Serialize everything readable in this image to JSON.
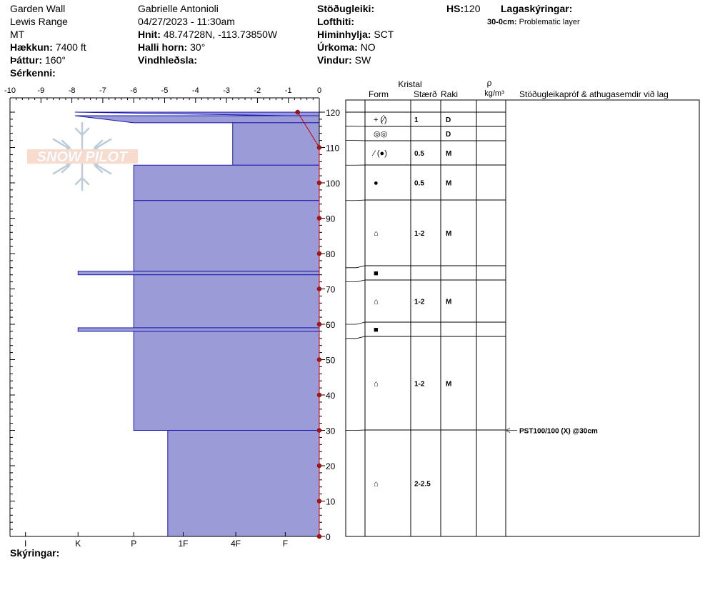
{
  "header": {
    "col1": {
      "location": "Garden Wall",
      "range": "Lewis Range",
      "state": "MT",
      "elevation_label": "Hækkun:",
      "elevation_value": "7400 ft",
      "aspect_label": "Þáttur:",
      "aspect_value": "160°",
      "features_label": "Sérkenni:"
    },
    "col2": {
      "observer": "Gabrielle Antonioli",
      "datetime": "04/27/2023 - 11:30am",
      "coords_label": "Hnit:",
      "coords_value": "48.74728N, -113.73850W",
      "slope_label": "Halli horn:",
      "slope_value": "30°",
      "wind_loading_label": "Vindhleðsla:"
    },
    "col3": {
      "stability_label": "Stöðugleiki:",
      "air_temp_label": "Lofthiti:",
      "sky_label": "Himinhylja:",
      "sky_value": "SCT",
      "precip_label": "Úrkoma:",
      "precip_value": "NO",
      "wind_label": "Vindur:",
      "wind_value": "SW"
    },
    "col4": {
      "hs_label": "HS:",
      "hs_value": "120",
      "legend_label": "Lagaskýringar:",
      "legend_item_range": "30-0cm:",
      "legend_item_text": "Problematic layer"
    }
  },
  "footer": {
    "notes_label": "Skýringar:"
  },
  "logo": {
    "text": "SNOW PILOT"
  },
  "table": {
    "header_crystal": "Kristal",
    "header_form": "Form",
    "header_size": "Stærð",
    "header_moisture": "Raki",
    "header_rho": "ρ",
    "header_density_unit": "kg/m³",
    "header_tests": "Stöðugleikapróf & athugasemdir við lag",
    "layers": [
      {
        "top": 120,
        "bottom": 116,
        "form": "+ (⁄́)",
        "size": "1",
        "moisture": "D"
      },
      {
        "top": 116,
        "bottom": 112,
        "form": "◎◎",
        "size": "",
        "moisture": "D"
      },
      {
        "top": 112,
        "bottom": 105,
        "form": "⁄ (●)",
        "size": "0.5",
        "moisture": "M"
      },
      {
        "top": 105,
        "bottom": 95,
        "form": "●",
        "size": "0.5",
        "moisture": "M"
      },
      {
        "top": 95,
        "bottom": 76,
        "form": "⌂",
        "size": "1-2",
        "moisture": "M"
      },
      {
        "top": 76,
        "bottom": 72,
        "form": "■",
        "size": "",
        "moisture": ""
      },
      {
        "top": 72,
        "bottom": 60,
        "form": "⌂",
        "size": "1-2",
        "moisture": "M"
      },
      {
        "top": 60,
        "bottom": 56,
        "form": "■",
        "size": "",
        "moisture": ""
      },
      {
        "top": 56,
        "bottom": 30,
        "form": "⌂",
        "size": "1-2",
        "moisture": "M"
      },
      {
        "top": 30,
        "bottom": 0,
        "form": "⌂",
        "size": "2-2.5",
        "moisture": ""
      }
    ],
    "test_result": {
      "height": 30,
      "text": "PST100/100 (X) @30cm"
    }
  },
  "chart_data": {
    "type": "area",
    "title": "",
    "x_axis_temperature": {
      "ticks": [
        "-10",
        "-9",
        "-8",
        "-7",
        "-6",
        "-5",
        "-4",
        "-3",
        "-2",
        "-1",
        "0"
      ],
      "range": [
        -10,
        0
      ]
    },
    "x_axis_hardness": {
      "ticks": [
        "I",
        "K",
        "P",
        "1F",
        "4F",
        "F"
      ]
    },
    "y_axis": {
      "ticks": [
        "0",
        "10",
        "20",
        "30",
        "40",
        "50",
        "60",
        "70",
        "80",
        "90",
        "100",
        "110",
        "120"
      ],
      "range": [
        0,
        120
      ],
      "unit": "cm"
    },
    "hardness_profile": [
      {
        "top": 120,
        "bottom": 119,
        "hardness_value": -1.1,
        "top_hardness": -7.9
      },
      {
        "top": 119,
        "bottom": 117,
        "hardness_value": -6.0,
        "top_hardness": -7.9
      },
      {
        "top": 117,
        "bottom": 105,
        "hardness_value": -2.8
      },
      {
        "top": 105,
        "bottom": 95,
        "hardness_value": -6.0
      },
      {
        "top": 95,
        "bottom": 75,
        "hardness_value": -6.0
      },
      {
        "top": 75,
        "bottom": 74,
        "hardness_value": -7.8
      },
      {
        "top": 74,
        "bottom": 59,
        "hardness_value": -6.0
      },
      {
        "top": 59,
        "bottom": 58,
        "hardness_value": -7.8
      },
      {
        "top": 58,
        "bottom": 30,
        "hardness_value": -6.0
      },
      {
        "top": 30,
        "bottom": 0,
        "hardness_value": -4.9
      }
    ],
    "temperature_profile": [
      {
        "height": 120,
        "temp": -0.7
      },
      {
        "height": 110,
        "temp": 0
      },
      {
        "height": 100,
        "temp": 0
      },
      {
        "height": 90,
        "temp": 0
      },
      {
        "height": 80,
        "temp": 0
      },
      {
        "height": 70,
        "temp": 0
      },
      {
        "height": 60,
        "temp": 0
      },
      {
        "height": 50,
        "temp": 0
      },
      {
        "height": 40,
        "temp": 0
      },
      {
        "height": 30,
        "temp": 0
      },
      {
        "height": 20,
        "temp": 0
      },
      {
        "height": 10,
        "temp": 0
      },
      {
        "height": 0,
        "temp": 0
      }
    ],
    "colors": {
      "fill": "#9b9bd7",
      "edge": "#1a1ab0",
      "temp_line": "#c00000",
      "temp_marker": "#b01010"
    }
  }
}
